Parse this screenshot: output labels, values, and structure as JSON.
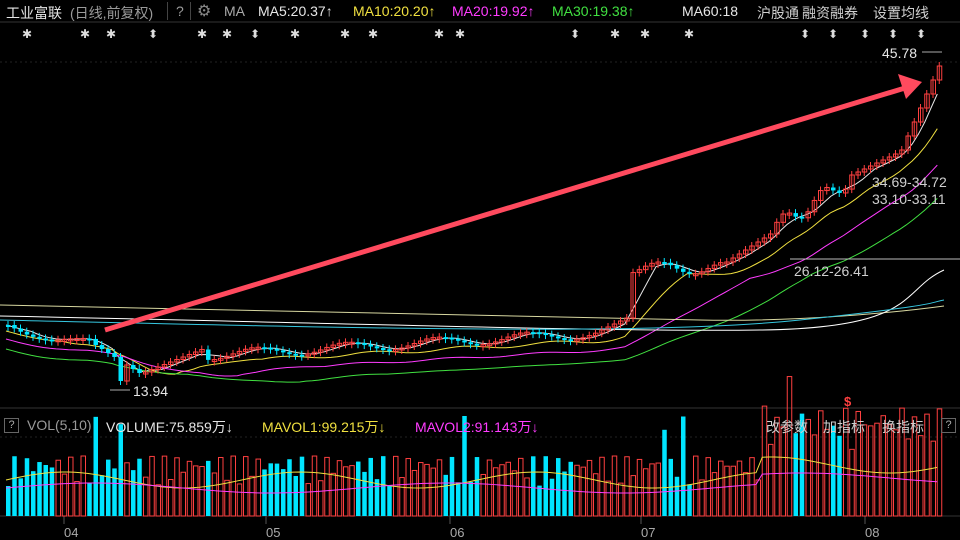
{
  "header": {
    "stock_name": "工业富联",
    "mode": "(日线,前复权)",
    "help": "?",
    "ma_label": "MA",
    "ma5": "MA5:20.37",
    "ma10": "MA10:20.20",
    "ma20": "MA20:19.92",
    "ma30": "MA30:19.38",
    "ma60": "MA60:18",
    "hgt": "沪股通",
    "rzrq": "融资融券",
    "set_ma": "设置均线"
  },
  "price_labels": {
    "high": "45.78",
    "low": "13.94",
    "range1": "34.69-34.72",
    "range2": "33.10-33.11",
    "range3": "26.12-26.41"
  },
  "volume_header": {
    "help": "?",
    "label": "VOL(5,10)",
    "volume": "VOLUME:75.859万",
    "mavol1": "MAVOL1:99.215万",
    "mavol2": "MAVOL2:91.143万",
    "params": "改参数",
    "add": "加指标",
    "switch": "换指标"
  },
  "x_axis": [
    "04",
    "05",
    "06",
    "07",
    "08"
  ],
  "colors": {
    "up": "#ff4040",
    "down": "#00e5ff",
    "ma5": "#e6e6e6",
    "ma10": "#f0e040",
    "ma20": "#ff3cff",
    "ma30": "#41e041",
    "arrow": "#ff4a5e"
  }
}
